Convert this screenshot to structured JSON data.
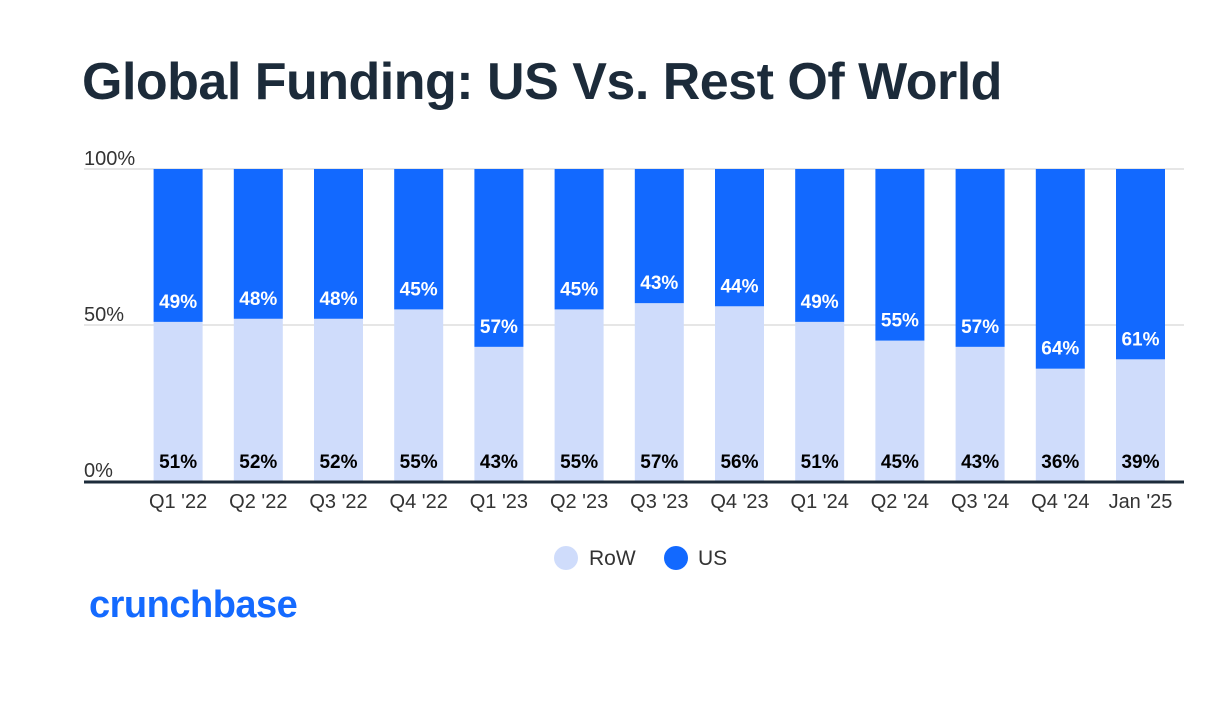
{
  "title": "Global Funding: US Vs. Rest Of World",
  "brand": {
    "logo_text": "crunchbase"
  },
  "colors": {
    "row": "#cfdcfb",
    "us": "#1269ff",
    "title": "#1c2b3a",
    "axis_text": "#333333",
    "gridline": "#dddddd",
    "baseline": "#1c2b3a",
    "brand": "#146aff"
  },
  "chart_data": {
    "type": "bar",
    "stacked": true,
    "normalized_percent": true,
    "categories": [
      "Q1 '22",
      "Q2 '22",
      "Q3 '22",
      "Q4 '22",
      "Q1 '23",
      "Q2 '23",
      "Q3 '23",
      "Q4 '23",
      "Q1 '24",
      "Q2 '24",
      "Q3 '24",
      "Q4 '24",
      "Jan '25"
    ],
    "series": [
      {
        "name": "RoW",
        "values": [
          51,
          52,
          52,
          55,
          43,
          55,
          57,
          56,
          51,
          45,
          43,
          36,
          39
        ],
        "labels": [
          "51%",
          "52%",
          "52%",
          "55%",
          "43%",
          "55%",
          "57%",
          "56%",
          "51%",
          "45%",
          "43%",
          "36%",
          "39%"
        ]
      },
      {
        "name": "US",
        "values": [
          49,
          48,
          48,
          45,
          57,
          45,
          43,
          44,
          49,
          55,
          57,
          64,
          61
        ],
        "labels": [
          "49%",
          "48%",
          "48%",
          "45%",
          "57%",
          "45%",
          "43%",
          "44%",
          "49%",
          "55%",
          "57%",
          "64%",
          "61%"
        ]
      }
    ],
    "ylim": [
      0,
      100
    ],
    "yticks": [
      0,
      50,
      100
    ],
    "ytick_labels": [
      "0%",
      "50%",
      "100%"
    ],
    "grid": true,
    "legend": {
      "position": "bottom-center",
      "items": [
        "RoW",
        "US"
      ]
    }
  }
}
